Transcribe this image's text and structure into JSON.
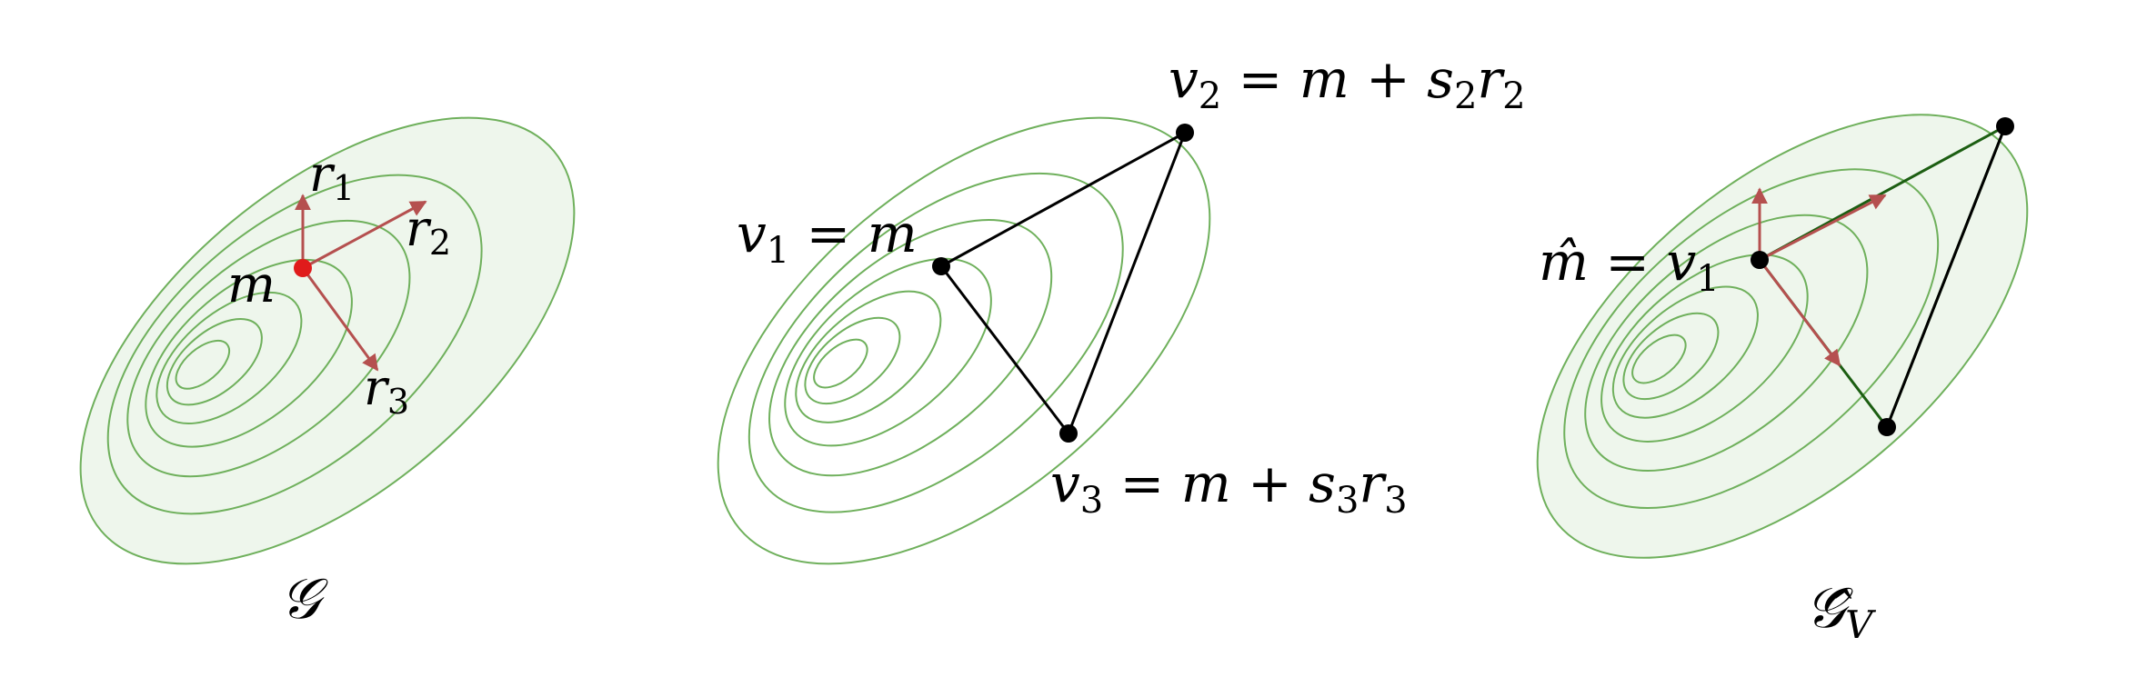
{
  "colors": {
    "contour_stroke": "#6fb05c",
    "contour_fill": "#eef6ec",
    "arrow": "#b5504f",
    "mean_point": "#e01b1b",
    "vertex": "#000000",
    "edge_green": "#1c5e12"
  },
  "panel_gaussian": {
    "label_m": "m",
    "label_r1": "r",
    "label_r1_sub": "1",
    "label_r2": "r",
    "label_r2_sub": "2",
    "label_r3": "r",
    "label_r3_sub": "3",
    "caption": "𝒢"
  },
  "panel_triangle": {
    "v1_label": "v",
    "v1_sub": "1",
    "v1_rhs": " = m",
    "v2_label": "v",
    "v2_sub": "2",
    "v2_rhs_a": " = m + s",
    "v2_rhs_s_sub": "2",
    "v2_rhs_b": "r",
    "v2_rhs_r_sub": "2",
    "v3_label": "v",
    "v3_sub": "3",
    "v3_rhs_a": " = m + s",
    "v3_rhs_s_sub": "3",
    "v3_rhs_b": "r",
    "v3_rhs_r_sub": "3"
  },
  "panel_fitted": {
    "mhat_label": "m̂",
    "mhat_rhs": " = v",
    "mhat_rhs_sub": "1",
    "caption": "𝒢̂",
    "caption_sub": "V"
  }
}
